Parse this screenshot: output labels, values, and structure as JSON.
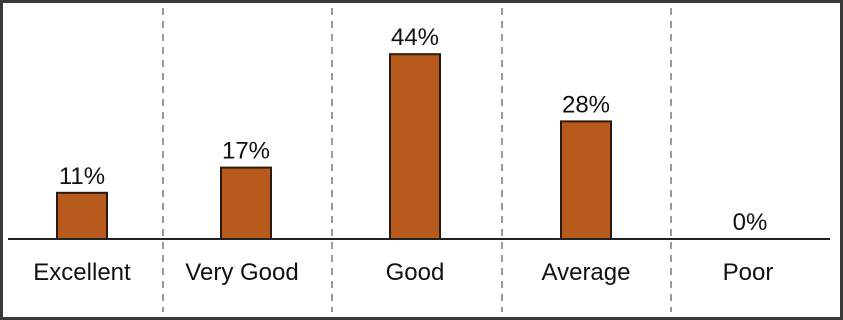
{
  "chart_data": {
    "type": "bar",
    "categories": [
      "Excellent",
      "Very Good",
      "Good",
      "Average",
      "Poor"
    ],
    "values": [
      11,
      17,
      44,
      28,
      0
    ],
    "value_labels": [
      "11%",
      "17%",
      "44%",
      "28%",
      "0%"
    ],
    "title": "",
    "xlabel": "",
    "ylabel": "",
    "ylim": [
      0,
      50
    ],
    "grid": "vertical dashed category dividers",
    "legend": "none",
    "colors": {
      "bar_fill": "#B85A1B",
      "bar_stroke": "#2a1a10",
      "frame": "#3a3a3a",
      "divider": "#9a9a9a",
      "baseline": "#222222",
      "text": "#111111"
    }
  }
}
